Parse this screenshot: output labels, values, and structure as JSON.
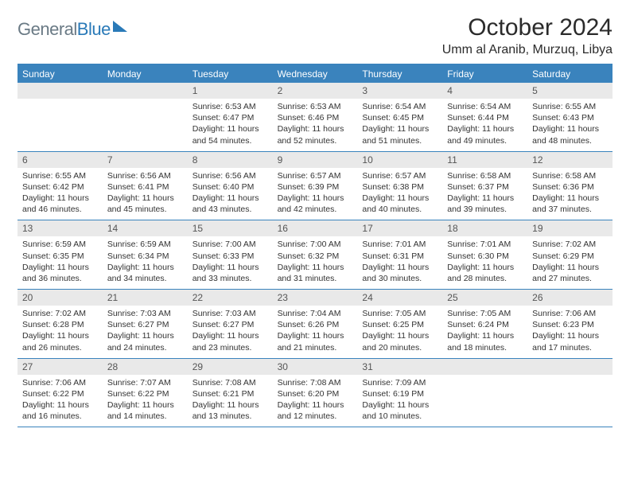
{
  "brand": {
    "part1": "General",
    "part2": "Blue"
  },
  "title": "October 2024",
  "location": "Umm al Aranib, Murzuq, Libya",
  "colors": {
    "header_bg": "#3a83bd",
    "daynum_bg": "#e9e9e9",
    "rule": "#3a83bd",
    "text": "#333333",
    "brand_gray": "#6a7a85",
    "brand_blue": "#2a7ab8"
  },
  "weekdays": [
    "Sunday",
    "Monday",
    "Tuesday",
    "Wednesday",
    "Thursday",
    "Friday",
    "Saturday"
  ],
  "weeks": [
    [
      null,
      null,
      {
        "n": "1",
        "sr": "Sunrise: 6:53 AM",
        "ss": "Sunset: 6:47 PM",
        "dl": "Daylight: 11 hours and 54 minutes."
      },
      {
        "n": "2",
        "sr": "Sunrise: 6:53 AM",
        "ss": "Sunset: 6:46 PM",
        "dl": "Daylight: 11 hours and 52 minutes."
      },
      {
        "n": "3",
        "sr": "Sunrise: 6:54 AM",
        "ss": "Sunset: 6:45 PM",
        "dl": "Daylight: 11 hours and 51 minutes."
      },
      {
        "n": "4",
        "sr": "Sunrise: 6:54 AM",
        "ss": "Sunset: 6:44 PM",
        "dl": "Daylight: 11 hours and 49 minutes."
      },
      {
        "n": "5",
        "sr": "Sunrise: 6:55 AM",
        "ss": "Sunset: 6:43 PM",
        "dl": "Daylight: 11 hours and 48 minutes."
      }
    ],
    [
      {
        "n": "6",
        "sr": "Sunrise: 6:55 AM",
        "ss": "Sunset: 6:42 PM",
        "dl": "Daylight: 11 hours and 46 minutes."
      },
      {
        "n": "7",
        "sr": "Sunrise: 6:56 AM",
        "ss": "Sunset: 6:41 PM",
        "dl": "Daylight: 11 hours and 45 minutes."
      },
      {
        "n": "8",
        "sr": "Sunrise: 6:56 AM",
        "ss": "Sunset: 6:40 PM",
        "dl": "Daylight: 11 hours and 43 minutes."
      },
      {
        "n": "9",
        "sr": "Sunrise: 6:57 AM",
        "ss": "Sunset: 6:39 PM",
        "dl": "Daylight: 11 hours and 42 minutes."
      },
      {
        "n": "10",
        "sr": "Sunrise: 6:57 AM",
        "ss": "Sunset: 6:38 PM",
        "dl": "Daylight: 11 hours and 40 minutes."
      },
      {
        "n": "11",
        "sr": "Sunrise: 6:58 AM",
        "ss": "Sunset: 6:37 PM",
        "dl": "Daylight: 11 hours and 39 minutes."
      },
      {
        "n": "12",
        "sr": "Sunrise: 6:58 AM",
        "ss": "Sunset: 6:36 PM",
        "dl": "Daylight: 11 hours and 37 minutes."
      }
    ],
    [
      {
        "n": "13",
        "sr": "Sunrise: 6:59 AM",
        "ss": "Sunset: 6:35 PM",
        "dl": "Daylight: 11 hours and 36 minutes."
      },
      {
        "n": "14",
        "sr": "Sunrise: 6:59 AM",
        "ss": "Sunset: 6:34 PM",
        "dl": "Daylight: 11 hours and 34 minutes."
      },
      {
        "n": "15",
        "sr": "Sunrise: 7:00 AM",
        "ss": "Sunset: 6:33 PM",
        "dl": "Daylight: 11 hours and 33 minutes."
      },
      {
        "n": "16",
        "sr": "Sunrise: 7:00 AM",
        "ss": "Sunset: 6:32 PM",
        "dl": "Daylight: 11 hours and 31 minutes."
      },
      {
        "n": "17",
        "sr": "Sunrise: 7:01 AM",
        "ss": "Sunset: 6:31 PM",
        "dl": "Daylight: 11 hours and 30 minutes."
      },
      {
        "n": "18",
        "sr": "Sunrise: 7:01 AM",
        "ss": "Sunset: 6:30 PM",
        "dl": "Daylight: 11 hours and 28 minutes."
      },
      {
        "n": "19",
        "sr": "Sunrise: 7:02 AM",
        "ss": "Sunset: 6:29 PM",
        "dl": "Daylight: 11 hours and 27 minutes."
      }
    ],
    [
      {
        "n": "20",
        "sr": "Sunrise: 7:02 AM",
        "ss": "Sunset: 6:28 PM",
        "dl": "Daylight: 11 hours and 26 minutes."
      },
      {
        "n": "21",
        "sr": "Sunrise: 7:03 AM",
        "ss": "Sunset: 6:27 PM",
        "dl": "Daylight: 11 hours and 24 minutes."
      },
      {
        "n": "22",
        "sr": "Sunrise: 7:03 AM",
        "ss": "Sunset: 6:27 PM",
        "dl": "Daylight: 11 hours and 23 minutes."
      },
      {
        "n": "23",
        "sr": "Sunrise: 7:04 AM",
        "ss": "Sunset: 6:26 PM",
        "dl": "Daylight: 11 hours and 21 minutes."
      },
      {
        "n": "24",
        "sr": "Sunrise: 7:05 AM",
        "ss": "Sunset: 6:25 PM",
        "dl": "Daylight: 11 hours and 20 minutes."
      },
      {
        "n": "25",
        "sr": "Sunrise: 7:05 AM",
        "ss": "Sunset: 6:24 PM",
        "dl": "Daylight: 11 hours and 18 minutes."
      },
      {
        "n": "26",
        "sr": "Sunrise: 7:06 AM",
        "ss": "Sunset: 6:23 PM",
        "dl": "Daylight: 11 hours and 17 minutes."
      }
    ],
    [
      {
        "n": "27",
        "sr": "Sunrise: 7:06 AM",
        "ss": "Sunset: 6:22 PM",
        "dl": "Daylight: 11 hours and 16 minutes."
      },
      {
        "n": "28",
        "sr": "Sunrise: 7:07 AM",
        "ss": "Sunset: 6:22 PM",
        "dl": "Daylight: 11 hours and 14 minutes."
      },
      {
        "n": "29",
        "sr": "Sunrise: 7:08 AM",
        "ss": "Sunset: 6:21 PM",
        "dl": "Daylight: 11 hours and 13 minutes."
      },
      {
        "n": "30",
        "sr": "Sunrise: 7:08 AM",
        "ss": "Sunset: 6:20 PM",
        "dl": "Daylight: 11 hours and 12 minutes."
      },
      {
        "n": "31",
        "sr": "Sunrise: 7:09 AM",
        "ss": "Sunset: 6:19 PM",
        "dl": "Daylight: 11 hours and 10 minutes."
      },
      null,
      null
    ]
  ]
}
